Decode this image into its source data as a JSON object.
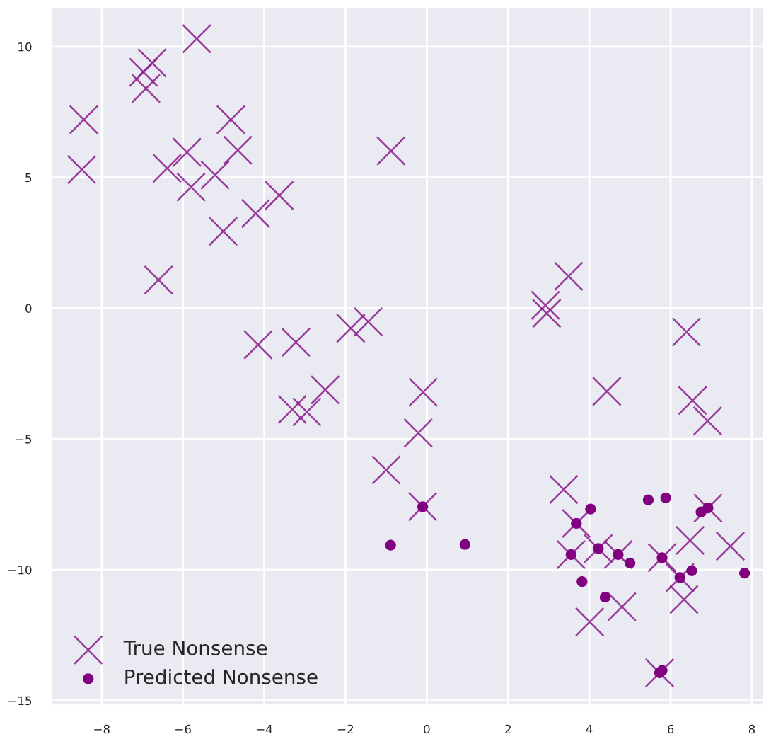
{
  "chart_data": {
    "type": "scatter",
    "xlim": [
      -9.25,
      8.3
    ],
    "ylim": [
      -15.2,
      11.5
    ],
    "xticks": [
      {
        "value": -8,
        "label": "−8"
      },
      {
        "value": -6,
        "label": "−6"
      },
      {
        "value": -4,
        "label": "−4"
      },
      {
        "value": -2,
        "label": "−2"
      },
      0,
      2,
      4,
      6,
      8
    ],
    "yticks": [
      {
        "value": -15,
        "label": "−15"
      },
      {
        "value": -10,
        "label": "−10"
      },
      {
        "value": -5,
        "label": "−5"
      },
      0,
      5,
      10
    ],
    "grid": true,
    "legend": "bottom left",
    "series": [
      {
        "name": "True Nonsense",
        "color": "#8b1a8b",
        "marker": "cross",
        "x": [
          -8.44,
          -8.49,
          -6.97,
          -6.76,
          -6.91,
          -5.66,
          -4.82,
          -5.9,
          -4.65,
          -6.39,
          -5.21,
          -5.8,
          -3.63,
          -4.21,
          -5.01,
          -6.6,
          -0.88,
          -4.15,
          -3.22,
          -1.87,
          -1.44,
          -2.5,
          -3.31,
          -2.95,
          -0.09,
          -0.21,
          -1.0,
          -0.1,
          3.49,
          2.92,
          2.95,
          6.39,
          4.43,
          6.54,
          6.91,
          3.37,
          3.68,
          3.55,
          4.22,
          4.71,
          5.79,
          6.23,
          6.48,
          7.47,
          6.33,
          4.8,
          4.01,
          5.73,
          6.92
        ],
        "values": [
          7.21,
          5.3,
          9.02,
          9.38,
          8.4,
          10.3,
          7.21,
          5.96,
          6.04,
          5.35,
          5.09,
          4.63,
          4.31,
          3.62,
          2.94,
          1.08,
          6.01,
          -1.4,
          -1.3,
          -0.77,
          -0.52,
          -3.12,
          -3.87,
          -3.97,
          -3.21,
          -4.77,
          -6.19,
          -7.59,
          1.22,
          0.11,
          -0.2,
          -0.91,
          -3.18,
          -3.53,
          -4.31,
          -6.93,
          -8.23,
          -9.42,
          -9.19,
          -9.42,
          -9.54,
          -10.3,
          -8.88,
          -9.1,
          -11.14,
          -11.42,
          -11.99,
          -13.94,
          -7.64
        ]
      },
      {
        "name": "Predicted Nonsense",
        "color": "#800080",
        "marker": "circle",
        "x": [
          -0.1,
          -0.89,
          0.94,
          3.68,
          3.55,
          4.22,
          4.71,
          5.79,
          6.23,
          6.92,
          4.03,
          5.45,
          5.88,
          6.75,
          5.0,
          3.82,
          4.39,
          6.52,
          7.82,
          5.79,
          5.73
        ],
        "values": [
          -7.59,
          -9.06,
          -9.03,
          -8.23,
          -9.42,
          -9.19,
          -9.42,
          -9.54,
          -10.3,
          -7.64,
          -7.68,
          -7.33,
          -7.25,
          -7.79,
          -9.74,
          -10.45,
          -11.05,
          -10.04,
          -10.13,
          -13.85,
          -13.94
        ]
      }
    ]
  }
}
